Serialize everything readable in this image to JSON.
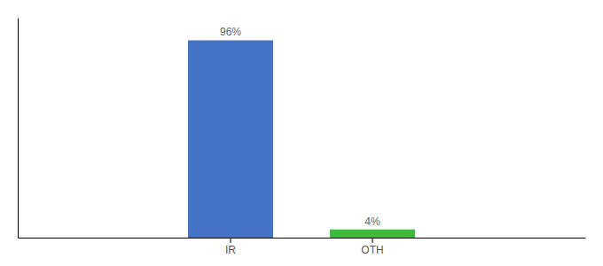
{
  "chart_data": {
    "type": "bar",
    "categories": [
      "IR",
      "OTH"
    ],
    "values": [
      96,
      4
    ],
    "value_labels": [
      "96%",
      "4%"
    ],
    "colors": [
      "#4472c4",
      "#3dbb3d"
    ],
    "ylim": [
      0,
      107
    ],
    "yticks": [],
    "data_labels": true,
    "tick_labels": "x"
  }
}
